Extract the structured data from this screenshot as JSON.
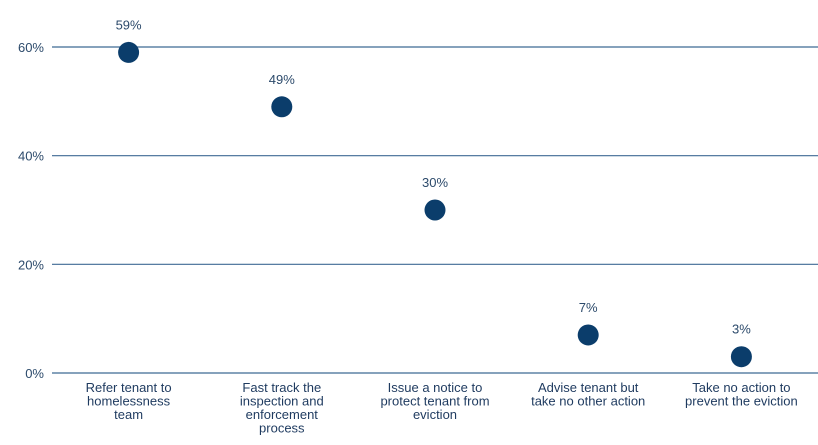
{
  "chart_data": {
    "type": "scatter",
    "title": "",
    "xlabel": "",
    "ylabel": "",
    "categories": [
      [
        "Refer tenant to",
        "homelessness",
        "team"
      ],
      [
        "Fast track the",
        "inspection and",
        "enforcement",
        "process"
      ],
      [
        "Issue a notice to",
        "protect tenant from",
        "eviction"
      ],
      [
        "Advise tenant but",
        "take no other action"
      ],
      [
        "Take no action to",
        "prevent the eviction"
      ]
    ],
    "values": [
      59,
      49,
      30,
      7,
      3
    ],
    "value_labels": [
      "59%",
      "49%",
      "30%",
      "7%",
      "3%"
    ],
    "y_ticks": [
      0,
      20,
      40,
      60
    ],
    "y_tick_labels": [
      "0%",
      "20%",
      "40%",
      "60%"
    ],
    "ylim": [
      0,
      60
    ],
    "grid": true,
    "legend": "none",
    "colors": {
      "marker": "#0b3d6b",
      "grid": "#3f6a94",
      "text": "#2c4a6b"
    }
  }
}
